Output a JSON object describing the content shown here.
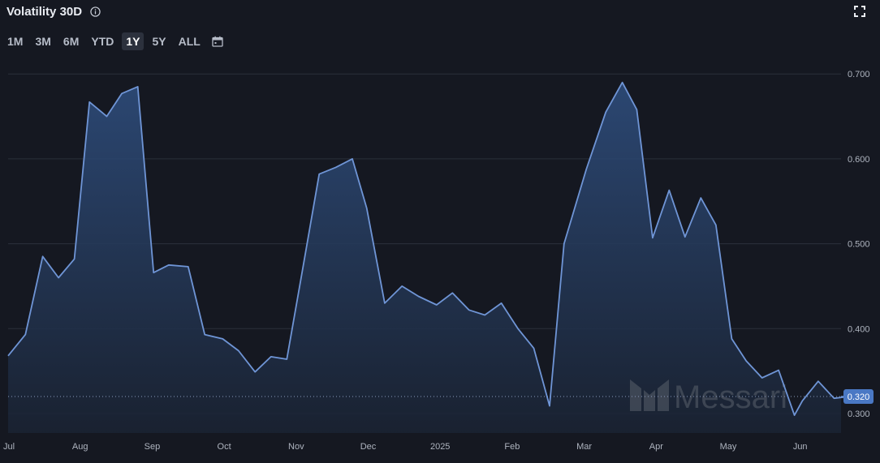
{
  "header": {
    "title": "Volatility 30D",
    "icons": {
      "info": "info-icon",
      "expand": "expand-icon",
      "calendar": "calendar-icon"
    }
  },
  "ranges": {
    "items": [
      {
        "label": "1M",
        "active": false
      },
      {
        "label": "3M",
        "active": false
      },
      {
        "label": "6M",
        "active": false
      },
      {
        "label": "YTD",
        "active": false
      },
      {
        "label": "1Y",
        "active": true
      },
      {
        "label": "5Y",
        "active": false
      },
      {
        "label": "ALL",
        "active": false
      }
    ]
  },
  "watermark": {
    "text": "Messari"
  },
  "colors": {
    "line": "#6f95d6",
    "fill_top": "#2f4f80",
    "fill_bottom": "#1a2333",
    "grid": "#2b303b",
    "last_badge": "#4a78c4"
  },
  "chart_data": {
    "type": "area",
    "title": "Volatility 30D",
    "ylim": [
      0.28,
      0.72
    ],
    "y_ticks": [
      "0.700",
      "0.600",
      "0.500",
      "0.400",
      "0.300"
    ],
    "y_tick_values": [
      0.7,
      0.6,
      0.5,
      0.4,
      0.3
    ],
    "x_ticks": [
      {
        "label": "Jul",
        "x": 0.0
      },
      {
        "label": "Aug",
        "x": 1.0
      },
      {
        "label": "Sep",
        "x": 2.0
      },
      {
        "label": "Oct",
        "x": 3.0
      },
      {
        "label": "Nov",
        "x": 4.0
      },
      {
        "label": "Dec",
        "x": 5.0
      },
      {
        "label": "2025",
        "x": 6.0
      },
      {
        "label": "Feb",
        "x": 7.0
      },
      {
        "label": "Mar",
        "x": 8.0
      },
      {
        "label": "Apr",
        "x": 9.0
      },
      {
        "label": "May",
        "x": 10.0
      },
      {
        "label": "Jun",
        "x": 11.0
      }
    ],
    "grid": true,
    "last_value": 0.32,
    "last_value_label": "0.320",
    "series": [
      {
        "x": [
          0.0,
          0.24,
          0.48,
          0.7,
          0.92,
          1.13,
          1.37,
          1.58,
          1.8,
          2.02,
          2.23,
          2.5,
          2.73,
          2.98,
          3.2,
          3.43,
          3.65,
          3.87,
          4.1,
          4.32,
          4.55,
          4.78,
          4.98,
          5.23,
          5.47,
          5.7,
          5.95,
          6.17,
          6.4,
          6.62,
          6.85,
          7.08,
          7.3,
          7.52,
          7.72,
          8.03,
          8.3,
          8.53,
          8.73,
          8.95,
          9.18,
          9.4,
          9.62,
          9.83,
          10.05,
          10.25,
          10.47,
          10.7,
          10.92,
          11.03,
          11.25,
          11.47,
          11.67
        ],
        "y": [
          0.368,
          0.393,
          0.485,
          0.46,
          0.482,
          0.667,
          0.65,
          0.677,
          0.685,
          0.466,
          0.475,
          0.473,
          0.393,
          0.388,
          0.374,
          0.349,
          0.367,
          0.364,
          0.475,
          0.582,
          0.59,
          0.6,
          0.542,
          0.43,
          0.45,
          0.438,
          0.428,
          0.442,
          0.422,
          0.416,
          0.43,
          0.4,
          0.377,
          0.309,
          0.5,
          0.588,
          0.655,
          0.69,
          0.658,
          0.507,
          0.563,
          0.508,
          0.554,
          0.522,
          0.388,
          0.362,
          0.342,
          0.351,
          0.298,
          0.315,
          0.338,
          0.318,
          0.32
        ]
      }
    ]
  }
}
